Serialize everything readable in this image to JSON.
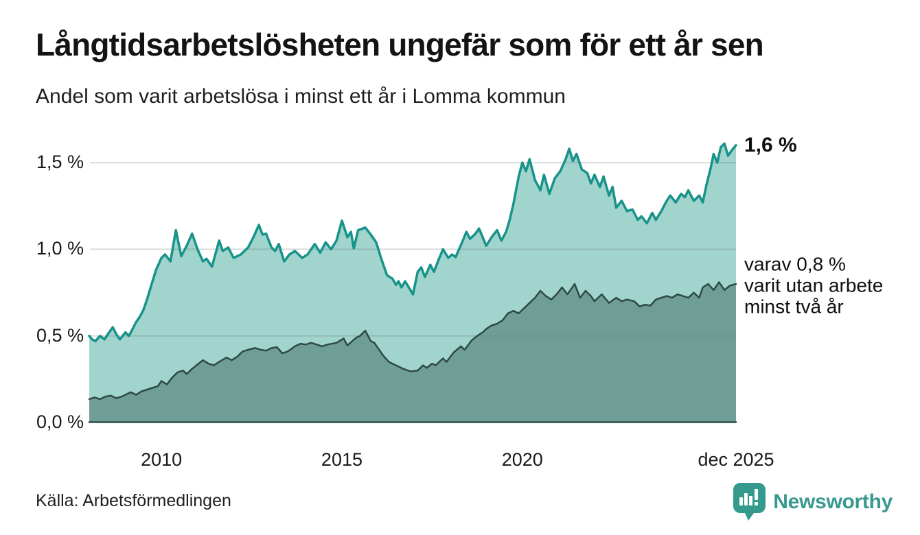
{
  "chart_data": {
    "type": "area",
    "title": "Långtidsarbetslösheten ungefär som för ett år sen",
    "subtitle": "Andel som varit arbetslösa i minst ett år i Lomma kommun",
    "source": "Källa: Arbetsförmedlingen",
    "x_domain": [
      2008.0,
      2025.92
    ],
    "y_domain": [
      0,
      1.75
    ],
    "grid": true,
    "legend": "none",
    "y_ticks": [
      {
        "value": 0.0,
        "label": "0,0 %"
      },
      {
        "value": 0.5,
        "label": "0,5 %"
      },
      {
        "value": 1.0,
        "label": "1,0 %"
      },
      {
        "value": 1.5,
        "label": "1,5 %"
      }
    ],
    "x_ticks": [
      {
        "value": 2010,
        "label": "2010"
      },
      {
        "value": 2015,
        "label": "2015"
      },
      {
        "value": 2020,
        "label": "2020"
      },
      {
        "value": 2025.92,
        "label": "dec 2025"
      }
    ],
    "annotations": {
      "end_value": {
        "label": "1,6 %",
        "value": 1.6
      },
      "secondary": {
        "value": 0.79,
        "lines": [
          "varav 0,8 %",
          "varit utan arbete",
          "minst två år"
        ]
      }
    },
    "series": [
      {
        "id": "minst-ett-ar",
        "line_color": "#17938a",
        "fill_color": "#a1d4cd",
        "line_width": 3.5,
        "end_value": 1.6,
        "points": [
          [
            2008.0,
            0.5
          ],
          [
            2008.08,
            0.48
          ],
          [
            2008.17,
            0.47
          ],
          [
            2008.3,
            0.5
          ],
          [
            2008.42,
            0.48
          ],
          [
            2008.55,
            0.52
          ],
          [
            2008.65,
            0.55
          ],
          [
            2008.75,
            0.51
          ],
          [
            2008.85,
            0.48
          ],
          [
            2009.0,
            0.52
          ],
          [
            2009.1,
            0.5
          ],
          [
            2009.2,
            0.54
          ],
          [
            2009.3,
            0.58
          ],
          [
            2009.4,
            0.61
          ],
          [
            2009.5,
            0.65
          ],
          [
            2009.6,
            0.71
          ],
          [
            2009.7,
            0.78
          ],
          [
            2009.85,
            0.88
          ],
          [
            2010.0,
            0.95
          ],
          [
            2010.1,
            0.97
          ],
          [
            2010.25,
            0.93
          ],
          [
            2010.4,
            1.11
          ],
          [
            2010.55,
            0.96
          ],
          [
            2010.7,
            1.02
          ],
          [
            2010.85,
            1.09
          ],
          [
            2011.0,
            1.0
          ],
          [
            2011.15,
            0.93
          ],
          [
            2011.25,
            0.945
          ],
          [
            2011.4,
            0.9
          ],
          [
            2011.6,
            1.05
          ],
          [
            2011.7,
            0.99
          ],
          [
            2011.85,
            1.01
          ],
          [
            2012.0,
            0.95
          ],
          [
            2012.2,
            0.97
          ],
          [
            2012.4,
            1.01
          ],
          [
            2012.55,
            1.07
          ],
          [
            2012.7,
            1.14
          ],
          [
            2012.8,
            1.085
          ],
          [
            2012.9,
            1.09
          ],
          [
            2013.05,
            1.01
          ],
          [
            2013.15,
            0.99
          ],
          [
            2013.25,
            1.03
          ],
          [
            2013.4,
            0.93
          ],
          [
            2013.55,
            0.97
          ],
          [
            2013.7,
            0.99
          ],
          [
            2013.9,
            0.95
          ],
          [
            2014.05,
            0.97
          ],
          [
            2014.25,
            1.03
          ],
          [
            2014.4,
            0.98
          ],
          [
            2014.55,
            1.04
          ],
          [
            2014.7,
            1.0
          ],
          [
            2014.85,
            1.05
          ],
          [
            2015.0,
            1.165
          ],
          [
            2015.15,
            1.07
          ],
          [
            2015.25,
            1.1
          ],
          [
            2015.33,
            1.005
          ],
          [
            2015.45,
            1.11
          ],
          [
            2015.65,
            1.125
          ],
          [
            2015.8,
            1.085
          ],
          [
            2015.95,
            1.04
          ],
          [
            2016.1,
            0.94
          ],
          [
            2016.25,
            0.85
          ],
          [
            2016.4,
            0.83
          ],
          [
            2016.5,
            0.795
          ],
          [
            2016.57,
            0.815
          ],
          [
            2016.65,
            0.78
          ],
          [
            2016.75,
            0.815
          ],
          [
            2016.9,
            0.765
          ],
          [
            2016.97,
            0.74
          ],
          [
            2017.1,
            0.87
          ],
          [
            2017.2,
            0.895
          ],
          [
            2017.3,
            0.84
          ],
          [
            2017.45,
            0.91
          ],
          [
            2017.55,
            0.87
          ],
          [
            2017.7,
            0.95
          ],
          [
            2017.8,
            1.0
          ],
          [
            2017.95,
            0.95
          ],
          [
            2018.05,
            0.97
          ],
          [
            2018.15,
            0.955
          ],
          [
            2018.35,
            1.05
          ],
          [
            2018.45,
            1.1
          ],
          [
            2018.55,
            1.06
          ],
          [
            2018.7,
            1.09
          ],
          [
            2018.8,
            1.12
          ],
          [
            2019.0,
            1.02
          ],
          [
            2019.15,
            1.07
          ],
          [
            2019.3,
            1.11
          ],
          [
            2019.42,
            1.05
          ],
          [
            2019.55,
            1.1
          ],
          [
            2019.65,
            1.17
          ],
          [
            2019.75,
            1.26
          ],
          [
            2019.9,
            1.42
          ],
          [
            2020.0,
            1.5
          ],
          [
            2020.1,
            1.45
          ],
          [
            2020.2,
            1.52
          ],
          [
            2020.35,
            1.4
          ],
          [
            2020.5,
            1.34
          ],
          [
            2020.6,
            1.43
          ],
          [
            2020.75,
            1.32
          ],
          [
            2020.9,
            1.41
          ],
          [
            2021.05,
            1.45
          ],
          [
            2021.2,
            1.52
          ],
          [
            2021.3,
            1.58
          ],
          [
            2021.4,
            1.51
          ],
          [
            2021.5,
            1.55
          ],
          [
            2021.65,
            1.46
          ],
          [
            2021.8,
            1.44
          ],
          [
            2021.9,
            1.38
          ],
          [
            2022.0,
            1.43
          ],
          [
            2022.15,
            1.36
          ],
          [
            2022.25,
            1.42
          ],
          [
            2022.4,
            1.31
          ],
          [
            2022.5,
            1.36
          ],
          [
            2022.6,
            1.24
          ],
          [
            2022.75,
            1.28
          ],
          [
            2022.9,
            1.22
          ],
          [
            2023.05,
            1.23
          ],
          [
            2023.2,
            1.17
          ],
          [
            2023.3,
            1.19
          ],
          [
            2023.45,
            1.15
          ],
          [
            2023.6,
            1.21
          ],
          [
            2023.7,
            1.17
          ],
          [
            2023.85,
            1.22
          ],
          [
            2024.0,
            1.28
          ],
          [
            2024.1,
            1.31
          ],
          [
            2024.25,
            1.27
          ],
          [
            2024.4,
            1.32
          ],
          [
            2024.5,
            1.3
          ],
          [
            2024.6,
            1.34
          ],
          [
            2024.75,
            1.28
          ],
          [
            2024.9,
            1.31
          ],
          [
            2025.0,
            1.27
          ],
          [
            2025.1,
            1.37
          ],
          [
            2025.22,
            1.47
          ],
          [
            2025.3,
            1.55
          ],
          [
            2025.4,
            1.5
          ],
          [
            2025.5,
            1.59
          ],
          [
            2025.6,
            1.61
          ],
          [
            2025.7,
            1.54
          ],
          [
            2025.8,
            1.57
          ],
          [
            2025.92,
            1.6
          ]
        ]
      },
      {
        "id": "minst-tva-ar",
        "line_color": "#2d4a42",
        "fill_color": "#6f9e96",
        "line_width": 2.5,
        "end_value": 0.8,
        "points": [
          [
            2008.0,
            0.135
          ],
          [
            2008.15,
            0.145
          ],
          [
            2008.3,
            0.135
          ],
          [
            2008.45,
            0.15
          ],
          [
            2008.6,
            0.155
          ],
          [
            2008.75,
            0.14
          ],
          [
            2008.9,
            0.15
          ],
          [
            2009.0,
            0.16
          ],
          [
            2009.15,
            0.175
          ],
          [
            2009.3,
            0.16
          ],
          [
            2009.45,
            0.18
          ],
          [
            2009.6,
            0.19
          ],
          [
            2009.75,
            0.2
          ],
          [
            2009.9,
            0.21
          ],
          [
            2010.0,
            0.24
          ],
          [
            2010.15,
            0.22
          ],
          [
            2010.3,
            0.26
          ],
          [
            2010.45,
            0.29
          ],
          [
            2010.6,
            0.3
          ],
          [
            2010.7,
            0.28
          ],
          [
            2010.85,
            0.31
          ],
          [
            2011.0,
            0.335
          ],
          [
            2011.15,
            0.36
          ],
          [
            2011.3,
            0.34
          ],
          [
            2011.45,
            0.33
          ],
          [
            2011.6,
            0.35
          ],
          [
            2011.8,
            0.375
          ],
          [
            2011.95,
            0.36
          ],
          [
            2012.1,
            0.38
          ],
          [
            2012.25,
            0.41
          ],
          [
            2012.4,
            0.42
          ],
          [
            2012.6,
            0.43
          ],
          [
            2012.75,
            0.42
          ],
          [
            2012.9,
            0.415
          ],
          [
            2013.05,
            0.43
          ],
          [
            2013.2,
            0.435
          ],
          [
            2013.35,
            0.4
          ],
          [
            2013.5,
            0.41
          ],
          [
            2013.7,
            0.44
          ],
          [
            2013.85,
            0.455
          ],
          [
            2014.0,
            0.45
          ],
          [
            2014.15,
            0.46
          ],
          [
            2014.3,
            0.45
          ],
          [
            2014.45,
            0.44
          ],
          [
            2014.6,
            0.45
          ],
          [
            2014.85,
            0.46
          ],
          [
            2015.05,
            0.485
          ],
          [
            2015.15,
            0.445
          ],
          [
            2015.4,
            0.49
          ],
          [
            2015.5,
            0.5
          ],
          [
            2015.65,
            0.53
          ],
          [
            2015.8,
            0.47
          ],
          [
            2015.9,
            0.46
          ],
          [
            2016.0,
            0.43
          ],
          [
            2016.15,
            0.385
          ],
          [
            2016.3,
            0.35
          ],
          [
            2016.5,
            0.33
          ],
          [
            2016.7,
            0.31
          ],
          [
            2016.9,
            0.295
          ],
          [
            2017.1,
            0.3
          ],
          [
            2017.25,
            0.33
          ],
          [
            2017.35,
            0.315
          ],
          [
            2017.5,
            0.34
          ],
          [
            2017.6,
            0.33
          ],
          [
            2017.8,
            0.37
          ],
          [
            2017.9,
            0.35
          ],
          [
            2018.1,
            0.405
          ],
          [
            2018.3,
            0.44
          ],
          [
            2018.4,
            0.42
          ],
          [
            2018.6,
            0.475
          ],
          [
            2018.75,
            0.5
          ],
          [
            2018.9,
            0.52
          ],
          [
            2019.0,
            0.54
          ],
          [
            2019.15,
            0.56
          ],
          [
            2019.3,
            0.57
          ],
          [
            2019.45,
            0.59
          ],
          [
            2019.6,
            0.63
          ],
          [
            2019.75,
            0.645
          ],
          [
            2019.9,
            0.63
          ],
          [
            2020.05,
            0.66
          ],
          [
            2020.2,
            0.69
          ],
          [
            2020.35,
            0.72
          ],
          [
            2020.5,
            0.76
          ],
          [
            2020.65,
            0.73
          ],
          [
            2020.8,
            0.71
          ],
          [
            2020.95,
            0.74
          ],
          [
            2021.1,
            0.78
          ],
          [
            2021.25,
            0.74
          ],
          [
            2021.45,
            0.8
          ],
          [
            2021.6,
            0.72
          ],
          [
            2021.75,
            0.76
          ],
          [
            2021.9,
            0.73
          ],
          [
            2022.0,
            0.7
          ],
          [
            2022.2,
            0.74
          ],
          [
            2022.4,
            0.69
          ],
          [
            2022.6,
            0.72
          ],
          [
            2022.75,
            0.7
          ],
          [
            2022.9,
            0.71
          ],
          [
            2023.1,
            0.7
          ],
          [
            2023.25,
            0.67
          ],
          [
            2023.4,
            0.68
          ],
          [
            2023.55,
            0.675
          ],
          [
            2023.7,
            0.71
          ],
          [
            2023.85,
            0.72
          ],
          [
            2024.0,
            0.73
          ],
          [
            2024.15,
            0.72
          ],
          [
            2024.3,
            0.74
          ],
          [
            2024.45,
            0.73
          ],
          [
            2024.6,
            0.72
          ],
          [
            2024.75,
            0.75
          ],
          [
            2024.9,
            0.72
          ],
          [
            2025.0,
            0.78
          ],
          [
            2025.15,
            0.8
          ],
          [
            2025.3,
            0.765
          ],
          [
            2025.45,
            0.81
          ],
          [
            2025.6,
            0.765
          ],
          [
            2025.75,
            0.79
          ],
          [
            2025.92,
            0.8
          ]
        ]
      }
    ],
    "style": {
      "grid_color": "rgba(110,125,120,0.28)",
      "baseline_color": "#2e4b43",
      "background": "#ffffff"
    }
  },
  "footer": {
    "brand": "Newsworthy",
    "brand_color": "#38998e"
  }
}
